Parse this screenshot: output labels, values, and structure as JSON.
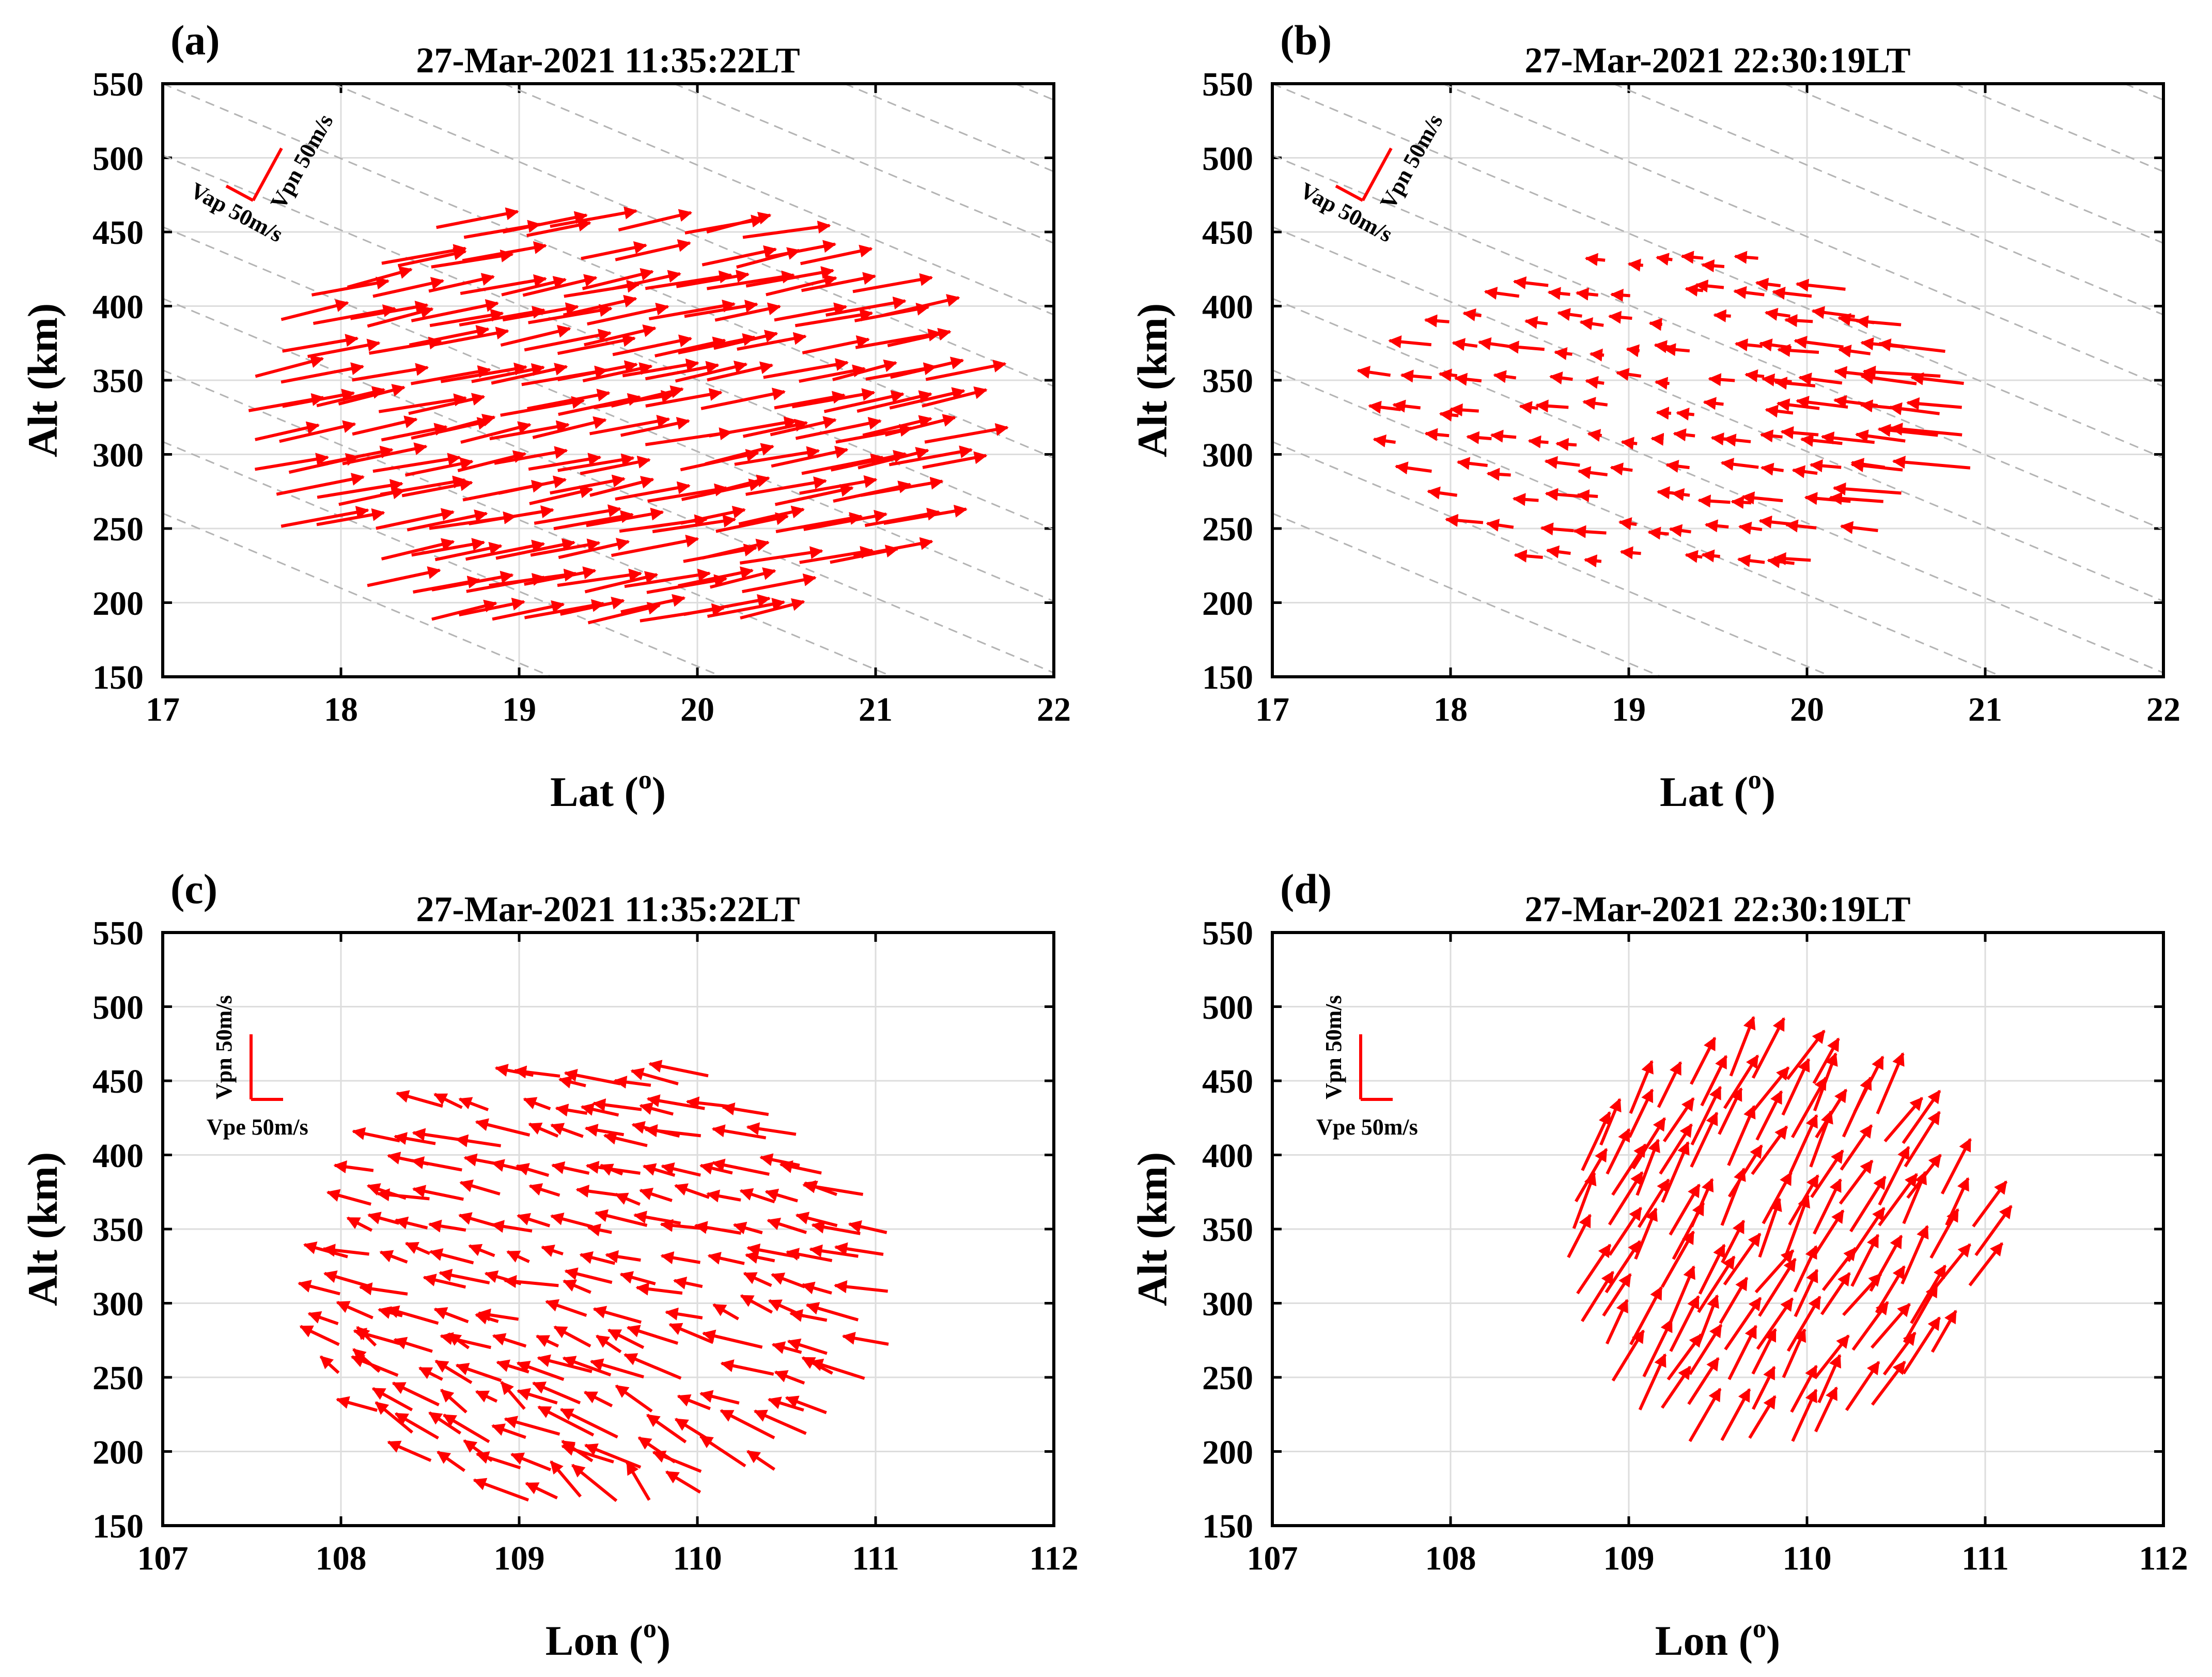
{
  "colors": {
    "arrow": "#ff0000",
    "axis": "#000000",
    "grid": "#dddddd",
    "guide": "#b4b4b4"
  },
  "chart_data": [
    {
      "type": "quiver",
      "label": "(a)",
      "title": "27-Mar-2021 11:35:22LT",
      "xlabel": "Lat (",
      "xlabel_sup": "o",
      "xlabel_tail": ")",
      "ylabel": "Alt (km)",
      "xlim": [
        17,
        22
      ],
      "ylim": [
        150,
        550
      ],
      "xticks": [
        "17",
        "18",
        "19",
        "20",
        "21",
        "22"
      ],
      "yticks": [
        "150",
        "200",
        "250",
        "300",
        "350",
        "400",
        "450",
        "500",
        "550"
      ],
      "reference": {
        "kind": "ap",
        "h_label": "Vap 50m/s",
        "v_label": "Vpn 50m/s"
      },
      "guides": {
        "slope": -1.0
      },
      "field": {
        "seed": 11,
        "center": [
          19.4,
          320
        ],
        "rx": 1.95,
        "ry": 150,
        "base_u": 0.42,
        "base_v": 10,
        "vary_u": 0.07,
        "vary_v": 2,
        "angle_trend": 0.0,
        "len_trend": 0.0
      }
    },
    {
      "type": "quiver",
      "label": "(b)",
      "title": "27-Mar-2021 22:30:19LT",
      "xlabel": "Lat (",
      "xlabel_sup": "o",
      "xlabel_tail": ")",
      "ylabel": "Alt (km)",
      "xlim": [
        17,
        22
      ],
      "ylim": [
        150,
        550
      ],
      "xticks": [
        "17",
        "18",
        "19",
        "20",
        "21",
        "22"
      ],
      "yticks": [
        "150",
        "200",
        "250",
        "300",
        "350",
        "400",
        "450",
        "500",
        "550"
      ],
      "reference": {
        "kind": "ap",
        "h_label": "Vap 50m/s",
        "v_label": "Vpn 50m/s"
      },
      "guides": {
        "slope": -1.0
      },
      "field": {
        "seed": 23,
        "center": [
          19.3,
          325
        ],
        "rx": 1.7,
        "ry": 110,
        "base_u": -0.2,
        "base_v": 2,
        "vary_u": 0.06,
        "vary_v": 1.5,
        "angle_trend": 0.9,
        "len_trend": 0.6
      }
    },
    {
      "type": "quiver",
      "label": "(c)",
      "title": "27-Mar-2021 11:35:22LT",
      "xlabel": "Lon (",
      "xlabel_sup": "o",
      "xlabel_tail": ")",
      "ylabel": "Alt (km)",
      "xlim": [
        107,
        112
      ],
      "ylim": [
        150,
        550
      ],
      "xticks": [
        "107",
        "108",
        "109",
        "110",
        "111",
        "112"
      ],
      "yticks": [
        "150",
        "200",
        "250",
        "300",
        "350",
        "400",
        "450",
        "500",
        "550"
      ],
      "reference": {
        "kind": "pe",
        "h_label": "Vpe 50m/s",
        "v_label": "Vpn 50m/s"
      },
      "guides": null,
      "field": {
        "seed": 37,
        "center": [
          109.5,
          310
        ],
        "rx": 1.65,
        "ry": 150,
        "base_u": -0.22,
        "base_v": 6,
        "vary_u": 0.1,
        "vary_v": 3,
        "angle_trend": 0.3,
        "len_trend": 0.4
      }
    },
    {
      "type": "quiver",
      "label": "(d)",
      "title": "27-Mar-2021 22:30:19LT",
      "xlabel": "Lon (",
      "xlabel_sup": "o",
      "xlabel_tail": ")",
      "ylabel": "Alt (km)",
      "xlim": [
        107,
        112
      ],
      "ylim": [
        150,
        550
      ],
      "xticks": [
        "107",
        "108",
        "109",
        "110",
        "111",
        "112"
      ],
      "yticks": [
        "150",
        "200",
        "250",
        "300",
        "350",
        "400",
        "450",
        "500",
        "550"
      ],
      "reference": {
        "kind": "pe",
        "h_label": "Vpe 50m/s",
        "v_label": "Vpn 50m/s"
      },
      "guides": null,
      "field": {
        "seed": 53,
        "center": [
          109.75,
          330
        ],
        "rx": 1.2,
        "ry": 128,
        "base_u": 0.16,
        "base_v": 34,
        "vary_u": 0.05,
        "vary_v": 6,
        "angle_trend": 0.15,
        "len_trend": 0.2
      }
    }
  ]
}
